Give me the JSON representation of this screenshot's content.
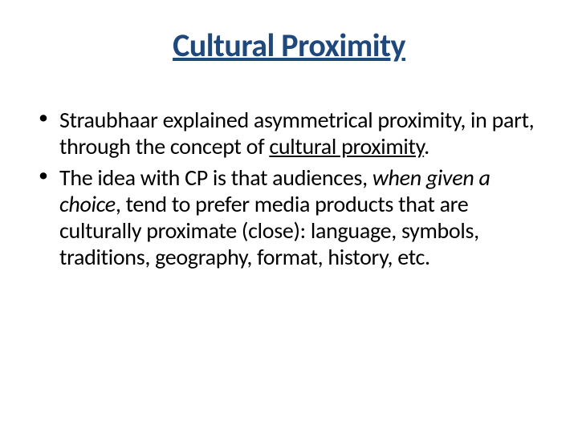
{
  "slide": {
    "title": "Cultural Proximity",
    "title_color": "#1f497d",
    "title_fontsize": 40,
    "title_underline": true,
    "background_color": "#ffffff",
    "body_color": "#000000",
    "body_fontsize": 28,
    "bullets": [
      {
        "pre": "Straubhaar explained asymmetrical proximity, in part, through the concept of ",
        "underlined": "cultural proximity",
        "post": "."
      },
      {
        "pre": "The idea with CP is that audiences, ",
        "italic": "when given a choice",
        "post": ", tend to prefer media products that are culturally proximate (close): language, symbols, traditions, geography, format, history, etc."
      }
    ]
  }
}
